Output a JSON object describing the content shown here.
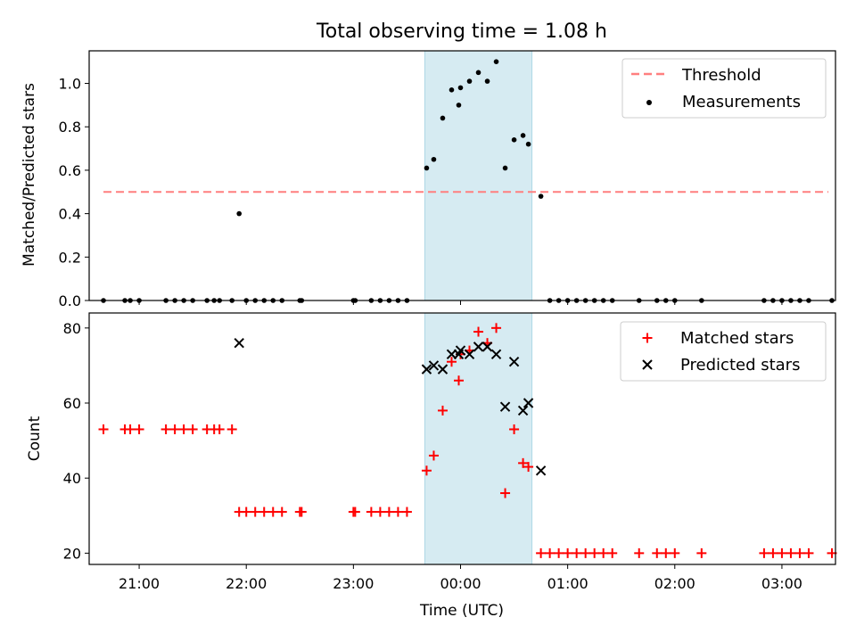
{
  "title": "Total observing time = 1.08 h",
  "colors": {
    "threshold": "#ff7f7f",
    "measurements": "#000000",
    "matched": "#ff0000",
    "predicted": "#000000",
    "span": "#add8e6"
  },
  "chart_data": [
    {
      "type": "scatter",
      "ylabel": "Matched/Predicted stars",
      "ylim": [
        0,
        1.15
      ],
      "yticks": [
        "0.0",
        "0.2",
        "0.4",
        "0.6",
        "0.8",
        "1.0"
      ],
      "legend_position": "top-right",
      "shaded_span": [
        "23:40",
        "00:40"
      ],
      "threshold": {
        "name": "Threshold",
        "y": 0.5,
        "x_range": [
          "20:40",
          "03:26"
        ]
      },
      "series": [
        {
          "name": "Measurements",
          "points": [
            [
              "20:40",
              0
            ],
            [
              "20:52",
              0
            ],
            [
              "20:55",
              0
            ],
            [
              "21:00",
              0
            ],
            [
              "21:15",
              0
            ],
            [
              "21:20",
              0
            ],
            [
              "21:25",
              0
            ],
            [
              "21:30",
              0
            ],
            [
              "21:38",
              0
            ],
            [
              "21:42",
              0
            ],
            [
              "21:45",
              0
            ],
            [
              "21:52",
              0
            ],
            [
              "21:56",
              0.4
            ],
            [
              "22:00",
              0
            ],
            [
              "22:05",
              0
            ],
            [
              "22:10",
              0
            ],
            [
              "22:15",
              0
            ],
            [
              "22:20",
              0
            ],
            [
              "22:30",
              0
            ],
            [
              "22:31",
              0
            ],
            [
              "23:00",
              0
            ],
            [
              "23:01",
              0
            ],
            [
              "23:10",
              0
            ],
            [
              "23:15",
              0
            ],
            [
              "23:20",
              0
            ],
            [
              "23:25",
              0
            ],
            [
              "23:30",
              0
            ],
            [
              "23:41",
              0.61
            ],
            [
              "23:45",
              0.65
            ],
            [
              "23:50",
              0.84
            ],
            [
              "23:55",
              0.97
            ],
            [
              "23:59",
              0.9
            ],
            [
              "00:00",
              0.98
            ],
            [
              "00:05",
              1.01
            ],
            [
              "00:10",
              1.05
            ],
            [
              "00:15",
              1.01
            ],
            [
              "00:20",
              1.1
            ],
            [
              "00:25",
              0.61
            ],
            [
              "00:30",
              0.74
            ],
            [
              "00:35",
              0.76
            ],
            [
              "00:38",
              0.72
            ],
            [
              "00:45",
              0.48
            ],
            [
              "00:50",
              0
            ],
            [
              "00:55",
              0
            ],
            [
              "01:00",
              0
            ],
            [
              "01:05",
              0
            ],
            [
              "01:10",
              0
            ],
            [
              "01:15",
              0
            ],
            [
              "01:20",
              0
            ],
            [
              "01:25",
              0
            ],
            [
              "01:40",
              0
            ],
            [
              "01:50",
              0
            ],
            [
              "01:55",
              0
            ],
            [
              "02:00",
              0
            ],
            [
              "02:15",
              0
            ],
            [
              "02:50",
              0
            ],
            [
              "02:55",
              0
            ],
            [
              "03:00",
              0
            ],
            [
              "03:05",
              0
            ],
            [
              "03:10",
              0
            ],
            [
              "03:15",
              0
            ],
            [
              "03:28",
              0
            ]
          ]
        }
      ]
    },
    {
      "type": "scatter",
      "xlabel": "Time (UTC)",
      "ylabel": "Count",
      "ylim": [
        17,
        84
      ],
      "yticks": [
        "20",
        "40",
        "60",
        "80"
      ],
      "xticks": [
        "21:00",
        "22:00",
        "23:00",
        "00:00",
        "01:00",
        "02:00",
        "03:00"
      ],
      "legend_position": "top-right",
      "shaded_span": [
        "23:40",
        "00:40"
      ],
      "series": [
        {
          "name": "Matched stars",
          "points": [
            [
              "20:40",
              53
            ],
            [
              "20:52",
              53
            ],
            [
              "20:55",
              53
            ],
            [
              "21:00",
              53
            ],
            [
              "21:15",
              53
            ],
            [
              "21:20",
              53
            ],
            [
              "21:25",
              53
            ],
            [
              "21:30",
              53
            ],
            [
              "21:38",
              53
            ],
            [
              "21:42",
              53
            ],
            [
              "21:45",
              53
            ],
            [
              "21:52",
              53
            ],
            [
              "21:56",
              31
            ],
            [
              "22:00",
              31
            ],
            [
              "22:05",
              31
            ],
            [
              "22:10",
              31
            ],
            [
              "22:15",
              31
            ],
            [
              "22:20",
              31
            ],
            [
              "22:30",
              31
            ],
            [
              "22:31",
              31
            ],
            [
              "23:00",
              31
            ],
            [
              "23:01",
              31
            ],
            [
              "23:10",
              31
            ],
            [
              "23:15",
              31
            ],
            [
              "23:20",
              31
            ],
            [
              "23:25",
              31
            ],
            [
              "23:30",
              31
            ],
            [
              "23:41",
              42
            ],
            [
              "23:45",
              46
            ],
            [
              "23:50",
              58
            ],
            [
              "23:55",
              71
            ],
            [
              "23:59",
              66
            ],
            [
              "00:00",
              73
            ],
            [
              "00:05",
              74
            ],
            [
              "00:10",
              79
            ],
            [
              "00:15",
              76
            ],
            [
              "00:20",
              80
            ],
            [
              "00:25",
              36
            ],
            [
              "00:30",
              53
            ],
            [
              "00:35",
              44
            ],
            [
              "00:38",
              43
            ],
            [
              "00:45",
              20
            ],
            [
              "00:50",
              20
            ],
            [
              "00:55",
              20
            ],
            [
              "01:00",
              20
            ],
            [
              "01:05",
              20
            ],
            [
              "01:10",
              20
            ],
            [
              "01:15",
              20
            ],
            [
              "01:20",
              20
            ],
            [
              "01:25",
              20
            ],
            [
              "01:40",
              20
            ],
            [
              "01:50",
              20
            ],
            [
              "01:55",
              20
            ],
            [
              "02:00",
              20
            ],
            [
              "02:15",
              20
            ],
            [
              "02:50",
              20
            ],
            [
              "02:55",
              20
            ],
            [
              "03:00",
              20
            ],
            [
              "03:05",
              20
            ],
            [
              "03:10",
              20
            ],
            [
              "03:15",
              20
            ],
            [
              "03:28",
              20
            ]
          ]
        },
        {
          "name": "Predicted stars",
          "points": [
            [
              "21:56",
              76
            ],
            [
              "23:41",
              69
            ],
            [
              "23:45",
              70
            ],
            [
              "23:50",
              69
            ],
            [
              "23:55",
              73
            ],
            [
              "23:59",
              73
            ],
            [
              "00:00",
              74
            ],
            [
              "00:05",
              73
            ],
            [
              "00:10",
              75
            ],
            [
              "00:15",
              75
            ],
            [
              "00:20",
              73
            ],
            [
              "00:25",
              59
            ],
            [
              "00:30",
              71
            ],
            [
              "00:35",
              58
            ],
            [
              "00:38",
              60
            ],
            [
              "00:45",
              42
            ]
          ]
        }
      ]
    }
  ]
}
